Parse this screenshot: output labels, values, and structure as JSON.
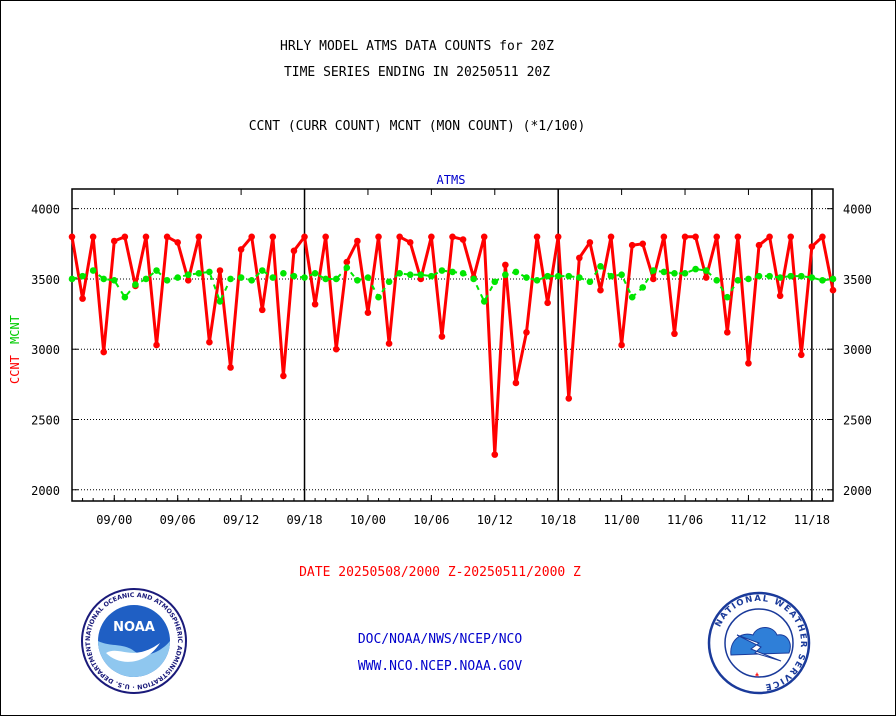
{
  "chart_data": {
    "type": "line",
    "title": "HRLY MODEL ATMS DATA COUNTS for 20Z",
    "subtitle": "TIME SERIES ENDING IN 20250511 20Z",
    "legend_text": "CCNT (CURR COUNT) MCNT (MON COUNT) (*1/100)",
    "plot_label": "ATMS",
    "ylabel_ccnt": "CCNT",
    "ylabel_mcnt": "MCNT",
    "date_range": "DATE 20250508/2000 Z-20250511/2000 Z",
    "ylim": [
      1920,
      4140
    ],
    "xlim": [
      0,
      72
    ],
    "yticks": [
      2000,
      2500,
      3000,
      3500,
      4000
    ],
    "ytick_labels": [
      "2000",
      "2500",
      "3000",
      "3500",
      "4000"
    ],
    "xticks": [
      {
        "x": 4,
        "label": "09/00"
      },
      {
        "x": 10,
        "label": "09/06"
      },
      {
        "x": 16,
        "label": "09/12"
      },
      {
        "x": 22,
        "label": "09/18"
      },
      {
        "x": 28,
        "label": "10/00"
      },
      {
        "x": 34,
        "label": "10/06"
      },
      {
        "x": 40,
        "label": "10/12"
      },
      {
        "x": 46,
        "label": "10/18"
      },
      {
        "x": 52,
        "label": "11/00"
      },
      {
        "x": 58,
        "label": "11/06"
      },
      {
        "x": 64,
        "label": "11/12"
      },
      {
        "x": 70,
        "label": "11/18"
      }
    ],
    "day_boundaries": [
      22,
      46,
      70
    ],
    "grid": true,
    "series": [
      {
        "name": "CCNT",
        "color": "#ff0000",
        "values": [
          3800,
          3360,
          3800,
          2980,
          3770,
          3800,
          3450,
          3800,
          3030,
          3800,
          3760,
          3490,
          3800,
          3050,
          3560,
          2870,
          3710,
          3800,
          3280,
          3800,
          2810,
          3700,
          3800,
          3320,
          3800,
          3000,
          3620,
          3770,
          3260,
          3800,
          3040,
          3800,
          3760,
          3500,
          3800,
          3090,
          3800,
          3780,
          3510,
          3800,
          2250,
          3600,
          2760,
          3120,
          3800,
          3330,
          3800,
          2650,
          3650,
          3760,
          3420,
          3800,
          3030,
          3740,
          3750,
          3500,
          3800,
          3110,
          3800,
          3800,
          3510,
          3800,
          3120,
          3800,
          2900,
          3740,
          3800,
          3380,
          3800,
          2960,
          3730,
          3800,
          3420
        ]
      },
      {
        "name": "MCNT",
        "color": "#00e600",
        "values": [
          3500,
          3520,
          3560,
          3500,
          3490,
          3370,
          3460,
          3500,
          3560,
          3490,
          3510,
          3530,
          3540,
          3550,
          3340,
          3500,
          3510,
          3490,
          3560,
          3510,
          3540,
          3520,
          3510,
          3540,
          3500,
          3500,
          3580,
          3490,
          3510,
          3370,
          3480,
          3540,
          3530,
          3530,
          3520,
          3560,
          3550,
          3540,
          3500,
          3340,
          3480,
          3530,
          3550,
          3510,
          3490,
          3520,
          3520,
          3520,
          3510,
          3480,
          3590,
          3520,
          3530,
          3370,
          3440,
          3560,
          3550,
          3540,
          3540,
          3570,
          3560,
          3490,
          3370,
          3490,
          3500,
          3520,
          3520,
          3510,
          3520,
          3520,
          3510,
          3490,
          3500
        ]
      }
    ]
  },
  "footer": {
    "line1": "DOC/NOAA/NWS/NCEP/NCO",
    "line2": "WWW.NCO.NCEP.NOAA.GOV"
  },
  "logos": {
    "noaa_badge": "NOAA",
    "noaa_ring": "NATIONAL OCEANIC AND ATMOSPHERIC ADMINISTRATION · U.S. DEPARTMENT OF COMMERCE ·",
    "nws_ring": "NATIONAL WEATHER SERVICE"
  }
}
